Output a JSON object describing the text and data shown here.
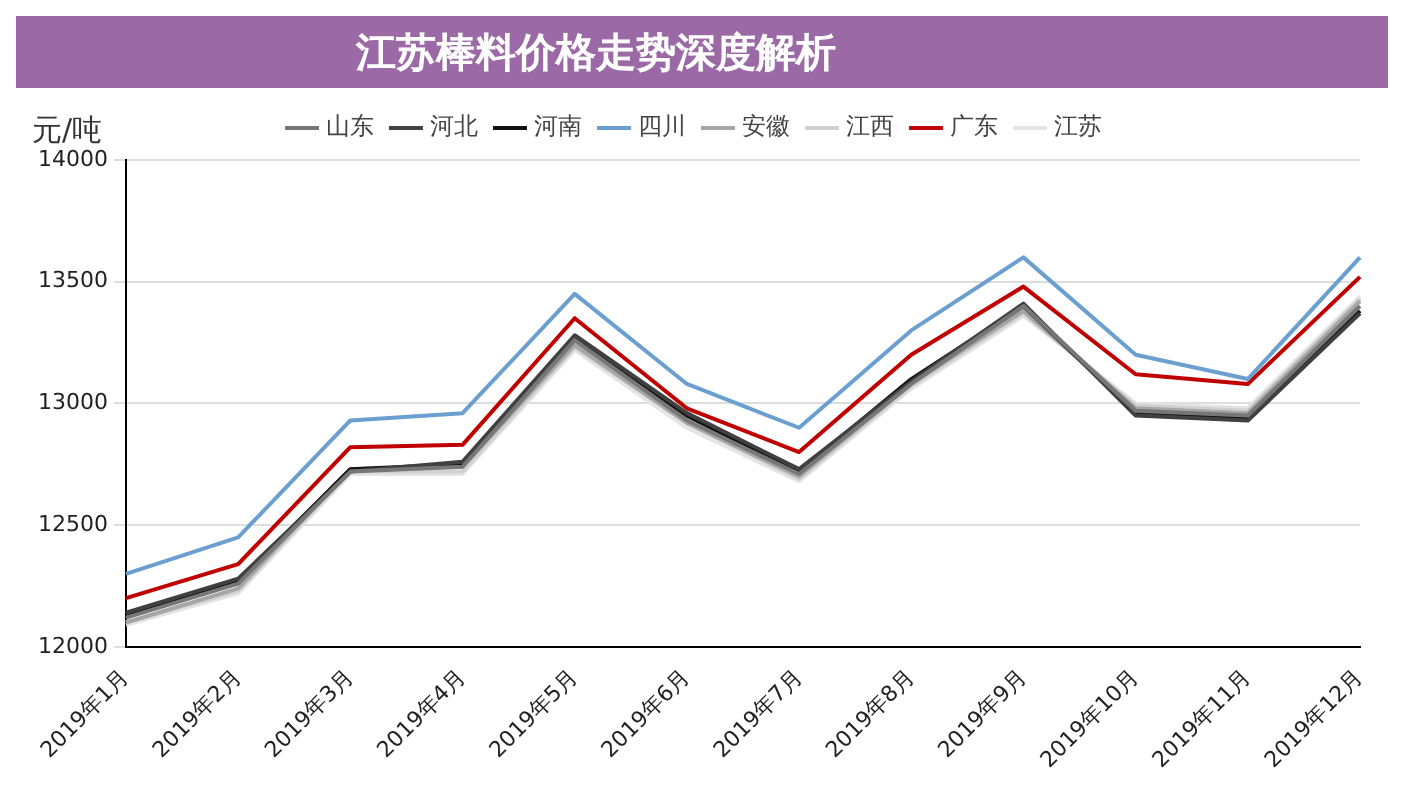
{
  "chart_data": {
    "type": "line",
    "title": "江苏棒料价格走势深度解析",
    "ylabel": "元/吨",
    "categories": [
      "2019年1月",
      "2019年2月",
      "2019年3月",
      "2019年4月",
      "2019年5月",
      "2019年6月",
      "2019年7月",
      "2019年8月",
      "2019年9月",
      "2019年10月",
      "2019年11月",
      "2019年12月"
    ],
    "series": [
      {
        "name": "山东",
        "color": "#777777",
        "values": [
          12120,
          12260,
          12720,
          12740,
          13260,
          12930,
          12710,
          13080,
          13400,
          12970,
          12950,
          13400
        ]
      },
      {
        "name": "河北",
        "color": "#404040",
        "values": [
          12140,
          12280,
          12720,
          12760,
          13280,
          12960,
          12730,
          13090,
          13410,
          12950,
          12930,
          13370
        ]
      },
      {
        "name": "河南",
        "color": "#111111",
        "values": [
          12130,
          12270,
          12730,
          12750,
          13270,
          12950,
          12720,
          13100,
          13400,
          12960,
          12940,
          13380
        ]
      },
      {
        "name": "四川",
        "color": "#6a9fd0",
        "values": [
          12300,
          12450,
          12930,
          12960,
          13450,
          13080,
          12900,
          13300,
          13600,
          13200,
          13100,
          13600
        ]
      },
      {
        "name": "安徽",
        "color": "#a6a6a6",
        "values": [
          12100,
          12240,
          12730,
          12740,
          13240,
          12920,
          12700,
          13080,
          13380,
          12980,
          12960,
          13420
        ]
      },
      {
        "name": "江西",
        "color": "#d0d0d0",
        "values": [
          12100,
          12230,
          12720,
          12720,
          13230,
          12920,
          12690,
          13070,
          13370,
          12990,
          12970,
          13430
        ]
      },
      {
        "name": "广东",
        "color": "#c00000",
        "values": [
          12200,
          12340,
          12820,
          12830,
          13350,
          12980,
          12800,
          13200,
          13480,
          13120,
          13080,
          13520
        ]
      },
      {
        "name": "江苏",
        "color": "#e4e4e4",
        "values": [
          12090,
          12220,
          12710,
          12710,
          13220,
          12900,
          12680,
          13060,
          13360,
          13000,
          12980,
          13440
        ]
      }
    ],
    "ylim": [
      12000,
      14000
    ],
    "yticks": [
      12000,
      12500,
      13000,
      13500,
      14000
    ],
    "grid": "y",
    "legend": "top",
    "marker": "none",
    "line_style": "solid"
  }
}
